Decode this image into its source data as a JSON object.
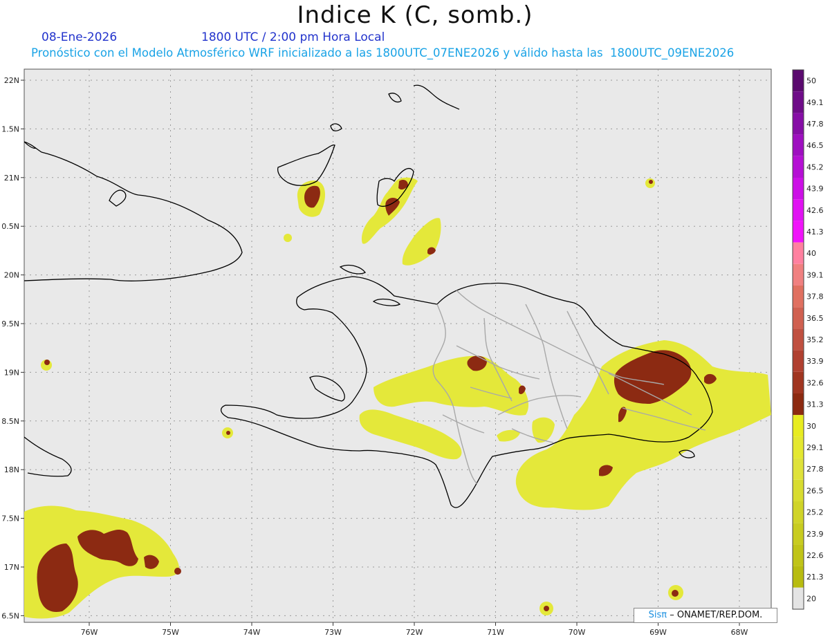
{
  "header": {
    "title": "Indice K (C, somb.)",
    "date": "08-Ene-2026",
    "time": "1800 UTC / 2:00 pm Hora Local",
    "forecast_line": "Pronóstico con el Modelo Atmosférico WRF inicializado a las 1800UTC_07ENE2026 y válido hasta las  1800UTC_09ENE2026"
  },
  "map": {
    "lat_labels": [
      "22N",
      "1.5N",
      "21N",
      "0.5N",
      "20N",
      "9.5N",
      "19N",
      "8.5N",
      "18N",
      "7.5N",
      "17N",
      "6.5N"
    ],
    "lon_labels": [
      "76W",
      "75W",
      "74W",
      "73W",
      "72W",
      "71W",
      "70W",
      "69W",
      "68W"
    ],
    "background_color": "#e9e9e9",
    "coast_color": "#000000",
    "border_color": "#a8a8a8"
  },
  "colorbar": {
    "labels": [
      "50",
      "49.1",
      "47.8",
      "46.5",
      "45.2",
      "43.9",
      "42.6",
      "41.3",
      "40",
      "39.1",
      "37.8",
      "36.5",
      "35.2",
      "33.9",
      "32.6",
      "31.3",
      "30",
      "29.1",
      "27.8",
      "26.5",
      "25.2",
      "23.9",
      "22.6",
      "21.3",
      "20"
    ],
    "colors": [
      "#5a0a6e",
      "#6e0c88",
      "#860ea6",
      "#9e0fc0",
      "#b50fd4",
      "#cc10e6",
      "#e012f2",
      "#f014fa",
      "#ff80a0",
      "#f08080",
      "#e07060",
      "#d06050",
      "#c05040",
      "#b04030",
      "#a03520",
      "#8c2a10",
      "#e8ec20",
      "#e4e830",
      "#dfe23a",
      "#d8dc30",
      "#d0d428",
      "#c8cc20",
      "#c0c418",
      "#b8bc10",
      "#e4e4e4"
    ],
    "value_levels": [
      50,
      49.1,
      47.8,
      46.5,
      45.2,
      43.9,
      42.6,
      41.3,
      40,
      39.1,
      37.8,
      36.5,
      35.2,
      33.9,
      32.6,
      31.3,
      30,
      29.1,
      27.8,
      26.5,
      25.2,
      23.9,
      22.6,
      21.3,
      20
    ]
  },
  "credit": {
    "sis": "Sisπ",
    "text": "– ONAMET/REP.DOM."
  }
}
